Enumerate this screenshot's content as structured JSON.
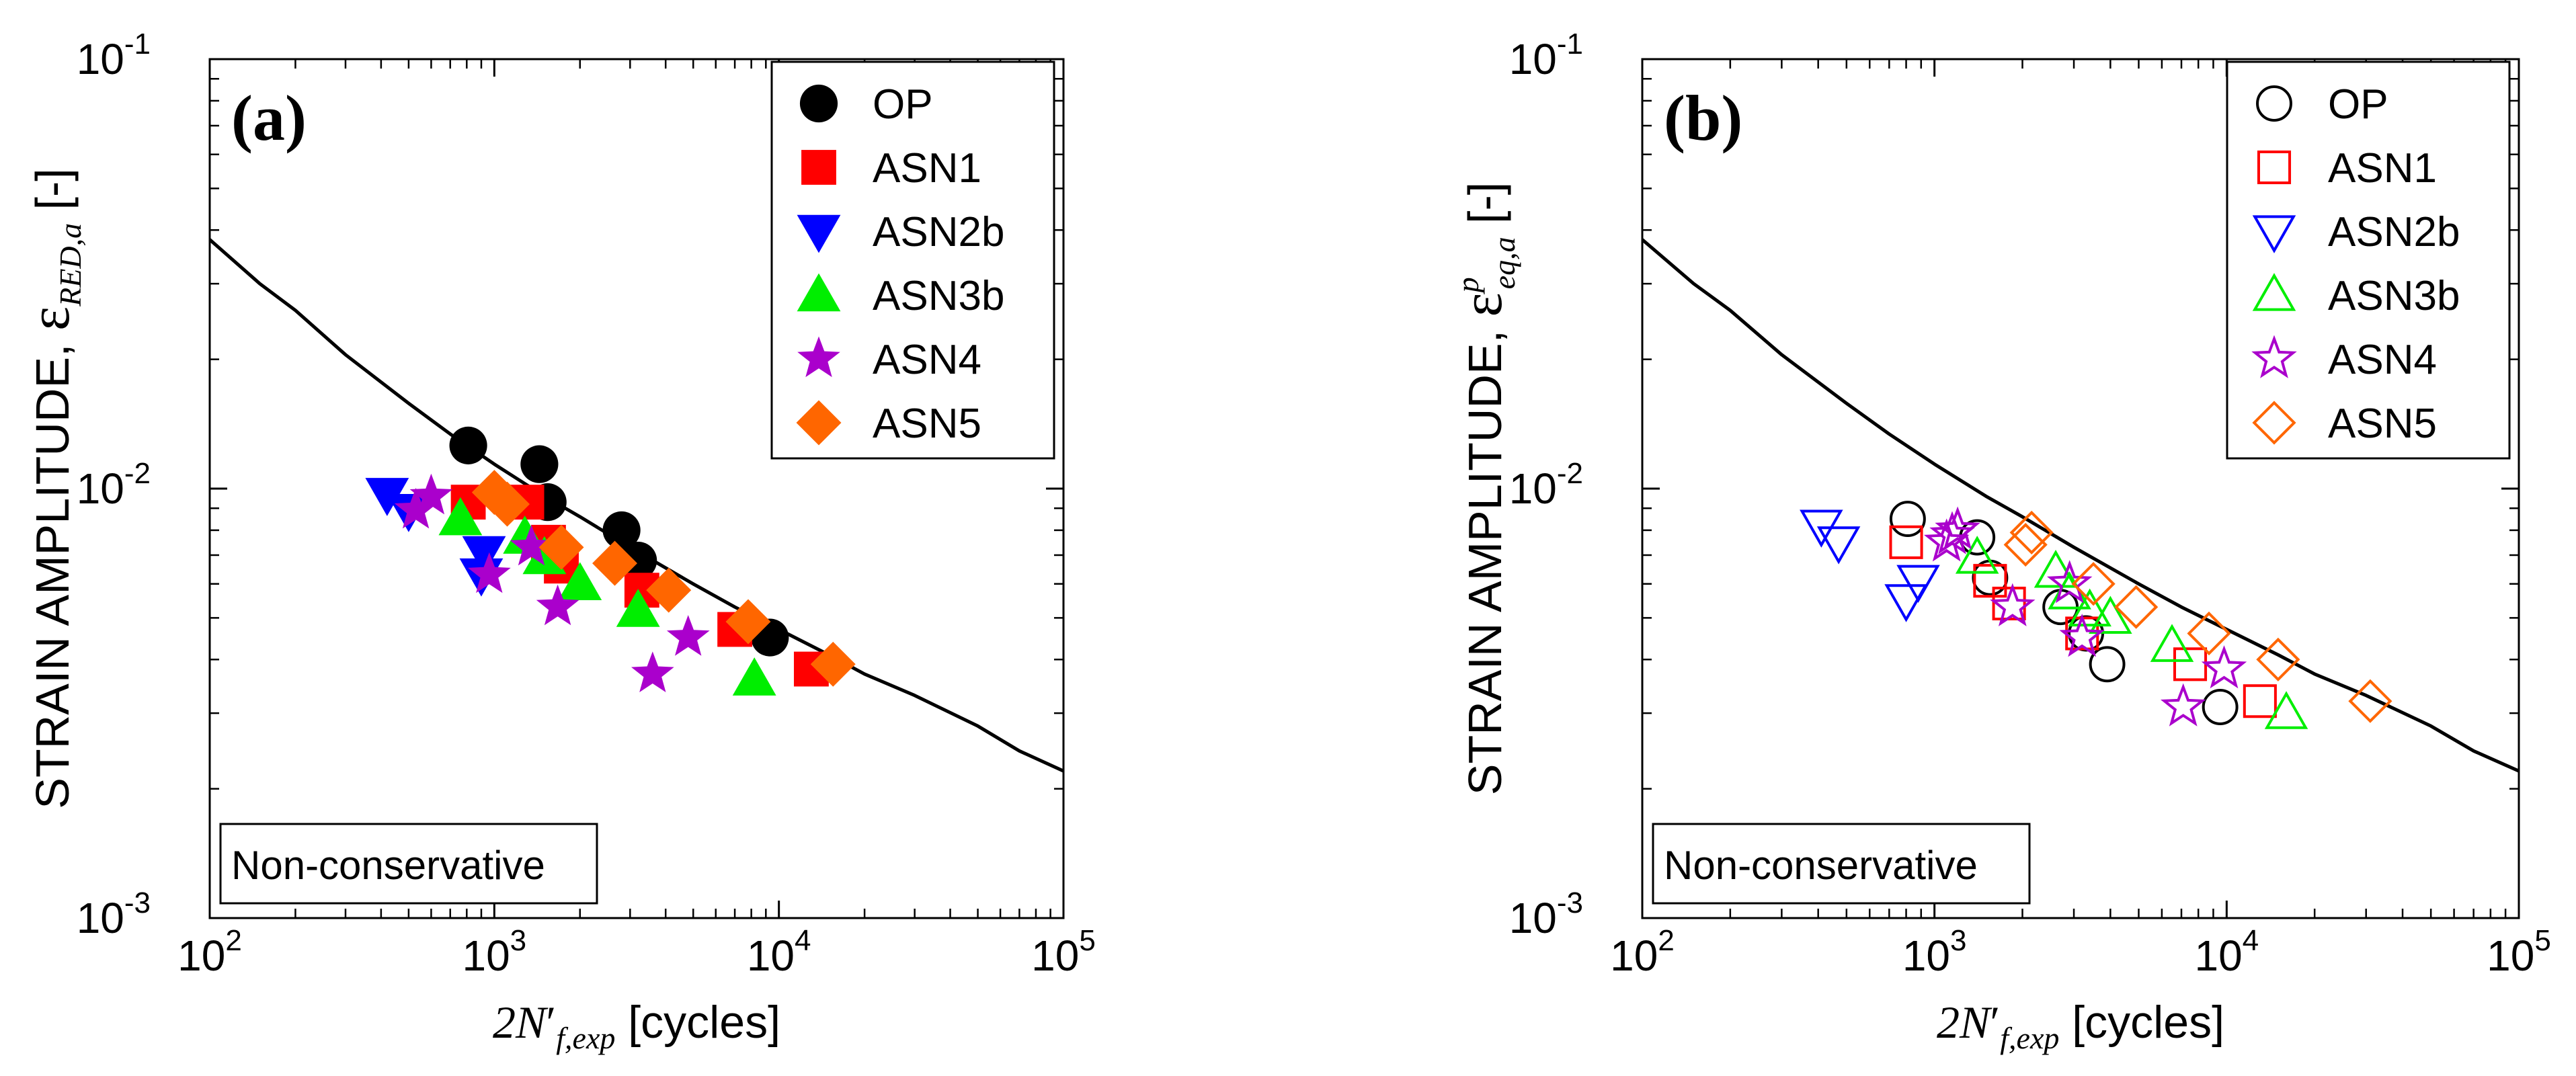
{
  "chart_data": [
    {
      "type": "scatter",
      "panel_label": "(a)",
      "xscale": "log",
      "yscale": "log",
      "xlim": [
        100,
        100000
      ],
      "ylim": [
        0.001,
        0.1
      ],
      "xlabel": {
        "prefix": "2N",
        "prime": "′",
        "sub": "f,exp",
        "suffix": " [cycles]"
      },
      "ylabel": {
        "prefix": "STRAIN AMPLITUDE, ",
        "symbol": "ε",
        "sub": "RED,a",
        "sup": "",
        "suffix": " [-]"
      },
      "xticks": [
        {
          "base": "10",
          "exp": "2"
        },
        {
          "base": "10",
          "exp": "3"
        },
        {
          "base": "10",
          "exp": "4"
        },
        {
          "base": "10",
          "exp": "5"
        }
      ],
      "yticks": [
        {
          "base": "10",
          "exp": "-3"
        },
        {
          "base": "10",
          "exp": "-2"
        },
        {
          "base": "10",
          "exp": "-1"
        }
      ],
      "annotation": "Non-conservative",
      "legend_position": "top-right",
      "marker_fill": "filled",
      "curve": {
        "x": [
          100,
          150,
          200,
          300,
          500,
          700,
          1000,
          1500,
          2000,
          3000,
          5000,
          7000,
          10000,
          15000,
          20000,
          30000,
          50000,
          70000,
          100000
        ],
        "y": [
          0.038,
          0.03,
          0.026,
          0.0205,
          0.0158,
          0.0134,
          0.0114,
          0.0096,
          0.0086,
          0.0073,
          0.006,
          0.0053,
          0.0047,
          0.0041,
          0.0037,
          0.0033,
          0.0028,
          0.00245,
          0.0022
        ]
      },
      "series": [
        {
          "name": "OP",
          "marker": "circle",
          "color": "#000000",
          "x": [
            810,
            1440,
            1540,
            2800,
            3200,
            9300
          ],
          "y": [
            0.0126,
            0.0114,
            0.0093,
            0.008,
            0.0068,
            0.0045
          ]
        },
        {
          "name": "ASN1",
          "marker": "square",
          "color": "#ff0000",
          "x": [
            810,
            1300,
            1550,
            1720,
            3300,
            7000,
            13000
          ],
          "y": [
            0.0093,
            0.0093,
            0.0075,
            0.0066,
            0.0058,
            0.0047,
            0.0038
          ]
        },
        {
          "name": "ASN2b",
          "marker": "triangle-down",
          "color": "#0000ff",
          "x": [
            420,
            500,
            920,
            900
          ],
          "y": [
            0.0097,
            0.0089,
            0.0071,
            0.0063
          ]
        },
        {
          "name": "ASN3b",
          "marker": "triangle-up",
          "color": "#00ee00",
          "x": [
            760,
            1280,
            1500,
            2000,
            3200,
            8200
          ],
          "y": [
            0.0085,
            0.0077,
            0.0069,
            0.006,
            0.0052,
            0.0036
          ]
        },
        {
          "name": "ASN4",
          "marker": "star",
          "color": "#aa00cc",
          "x": [
            530,
            600,
            960,
            1350,
            1670,
            3600,
            4800
          ],
          "y": [
            0.0089,
            0.0096,
            0.0063,
            0.0073,
            0.0053,
            0.0037,
            0.0045
          ]
        },
        {
          "name": "ASN5",
          "marker": "diamond",
          "color": "#ff6600",
          "x": [
            1000,
            1110,
            1720,
            2650,
            4100,
            7800,
            15500
          ],
          "y": [
            0.0098,
            0.0092,
            0.0073,
            0.0067,
            0.0058,
            0.0049,
            0.0039
          ]
        }
      ]
    },
    {
      "type": "scatter",
      "panel_label": "(b)",
      "xscale": "log",
      "yscale": "log",
      "xlim": [
        100,
        100000
      ],
      "ylim": [
        0.001,
        0.1
      ],
      "xlabel": {
        "prefix": "2N",
        "prime": "′",
        "sub": "f,exp",
        "suffix": " [cycles]"
      },
      "ylabel": {
        "prefix": "STRAIN AMPLITUDE, ",
        "symbol": "ε",
        "sub": "eq,a",
        "sup": "p",
        "suffix": " [-]"
      },
      "xticks": [
        {
          "base": "10",
          "exp": "2"
        },
        {
          "base": "10",
          "exp": "3"
        },
        {
          "base": "10",
          "exp": "4"
        },
        {
          "base": "10",
          "exp": "5"
        }
      ],
      "yticks": [
        {
          "base": "10",
          "exp": "-3"
        },
        {
          "base": "10",
          "exp": "-2"
        },
        {
          "base": "10",
          "exp": "-1"
        }
      ],
      "annotation": "Non-conservative",
      "legend_position": "top-right",
      "marker_fill": "open",
      "curve": {
        "x": [
          100,
          150,
          200,
          300,
          500,
          700,
          1000,
          1500,
          2000,
          3000,
          5000,
          7000,
          10000,
          15000,
          20000,
          30000,
          50000,
          70000,
          100000
        ],
        "y": [
          0.038,
          0.03,
          0.026,
          0.0205,
          0.0158,
          0.0134,
          0.0114,
          0.0096,
          0.0086,
          0.0073,
          0.006,
          0.0053,
          0.0047,
          0.0041,
          0.0037,
          0.0033,
          0.0028,
          0.00245,
          0.0022
        ]
      },
      "series": [
        {
          "name": "OP",
          "marker": "circle",
          "color": "#000000",
          "x": [
            810,
            1400,
            1550,
            2700,
            3300,
            3900,
            9500
          ],
          "y": [
            0.0085,
            0.0077,
            0.0062,
            0.0053,
            0.0046,
            0.0039,
            0.0031
          ]
        },
        {
          "name": "ASN1",
          "marker": "square",
          "color": "#ff0000",
          "x": [
            800,
            1550,
            1800,
            3200,
            7500,
            13000
          ],
          "y": [
            0.0075,
            0.0061,
            0.0054,
            0.0046,
            0.0039,
            0.0032
          ]
        },
        {
          "name": "ASN2b",
          "marker": "triangle-down",
          "color": "#0000ff",
          "x": [
            410,
            470,
            880,
            800
          ],
          "y": [
            0.0082,
            0.0075,
            0.0061,
            0.0055
          ]
        },
        {
          "name": "ASN3b",
          "marker": "triangle-up",
          "color": "#00ee00",
          "x": [
            1400,
            2600,
            2900,
            3400,
            4000,
            6500,
            16000
          ],
          "y": [
            0.0069,
            0.0064,
            0.0057,
            0.0052,
            0.005,
            0.0043,
            0.003
          ]
        },
        {
          "name": "ASN4",
          "marker": "star",
          "color": "#aa00cc",
          "x": [
            1100,
            1150,
            1200,
            1850,
            2900,
            3200,
            9800,
            7100
          ],
          "y": [
            0.0075,
            0.0078,
            0.008,
            0.0053,
            0.006,
            0.0045,
            0.0038,
            0.0031
          ]
        },
        {
          "name": "ASN5",
          "marker": "diamond",
          "color": "#ff6600",
          "x": [
            2050,
            2150,
            3500,
            4900,
            8700,
            15000,
            31000
          ],
          "y": [
            0.0074,
            0.0079,
            0.006,
            0.0053,
            0.0046,
            0.004,
            0.0032
          ]
        }
      ]
    }
  ]
}
